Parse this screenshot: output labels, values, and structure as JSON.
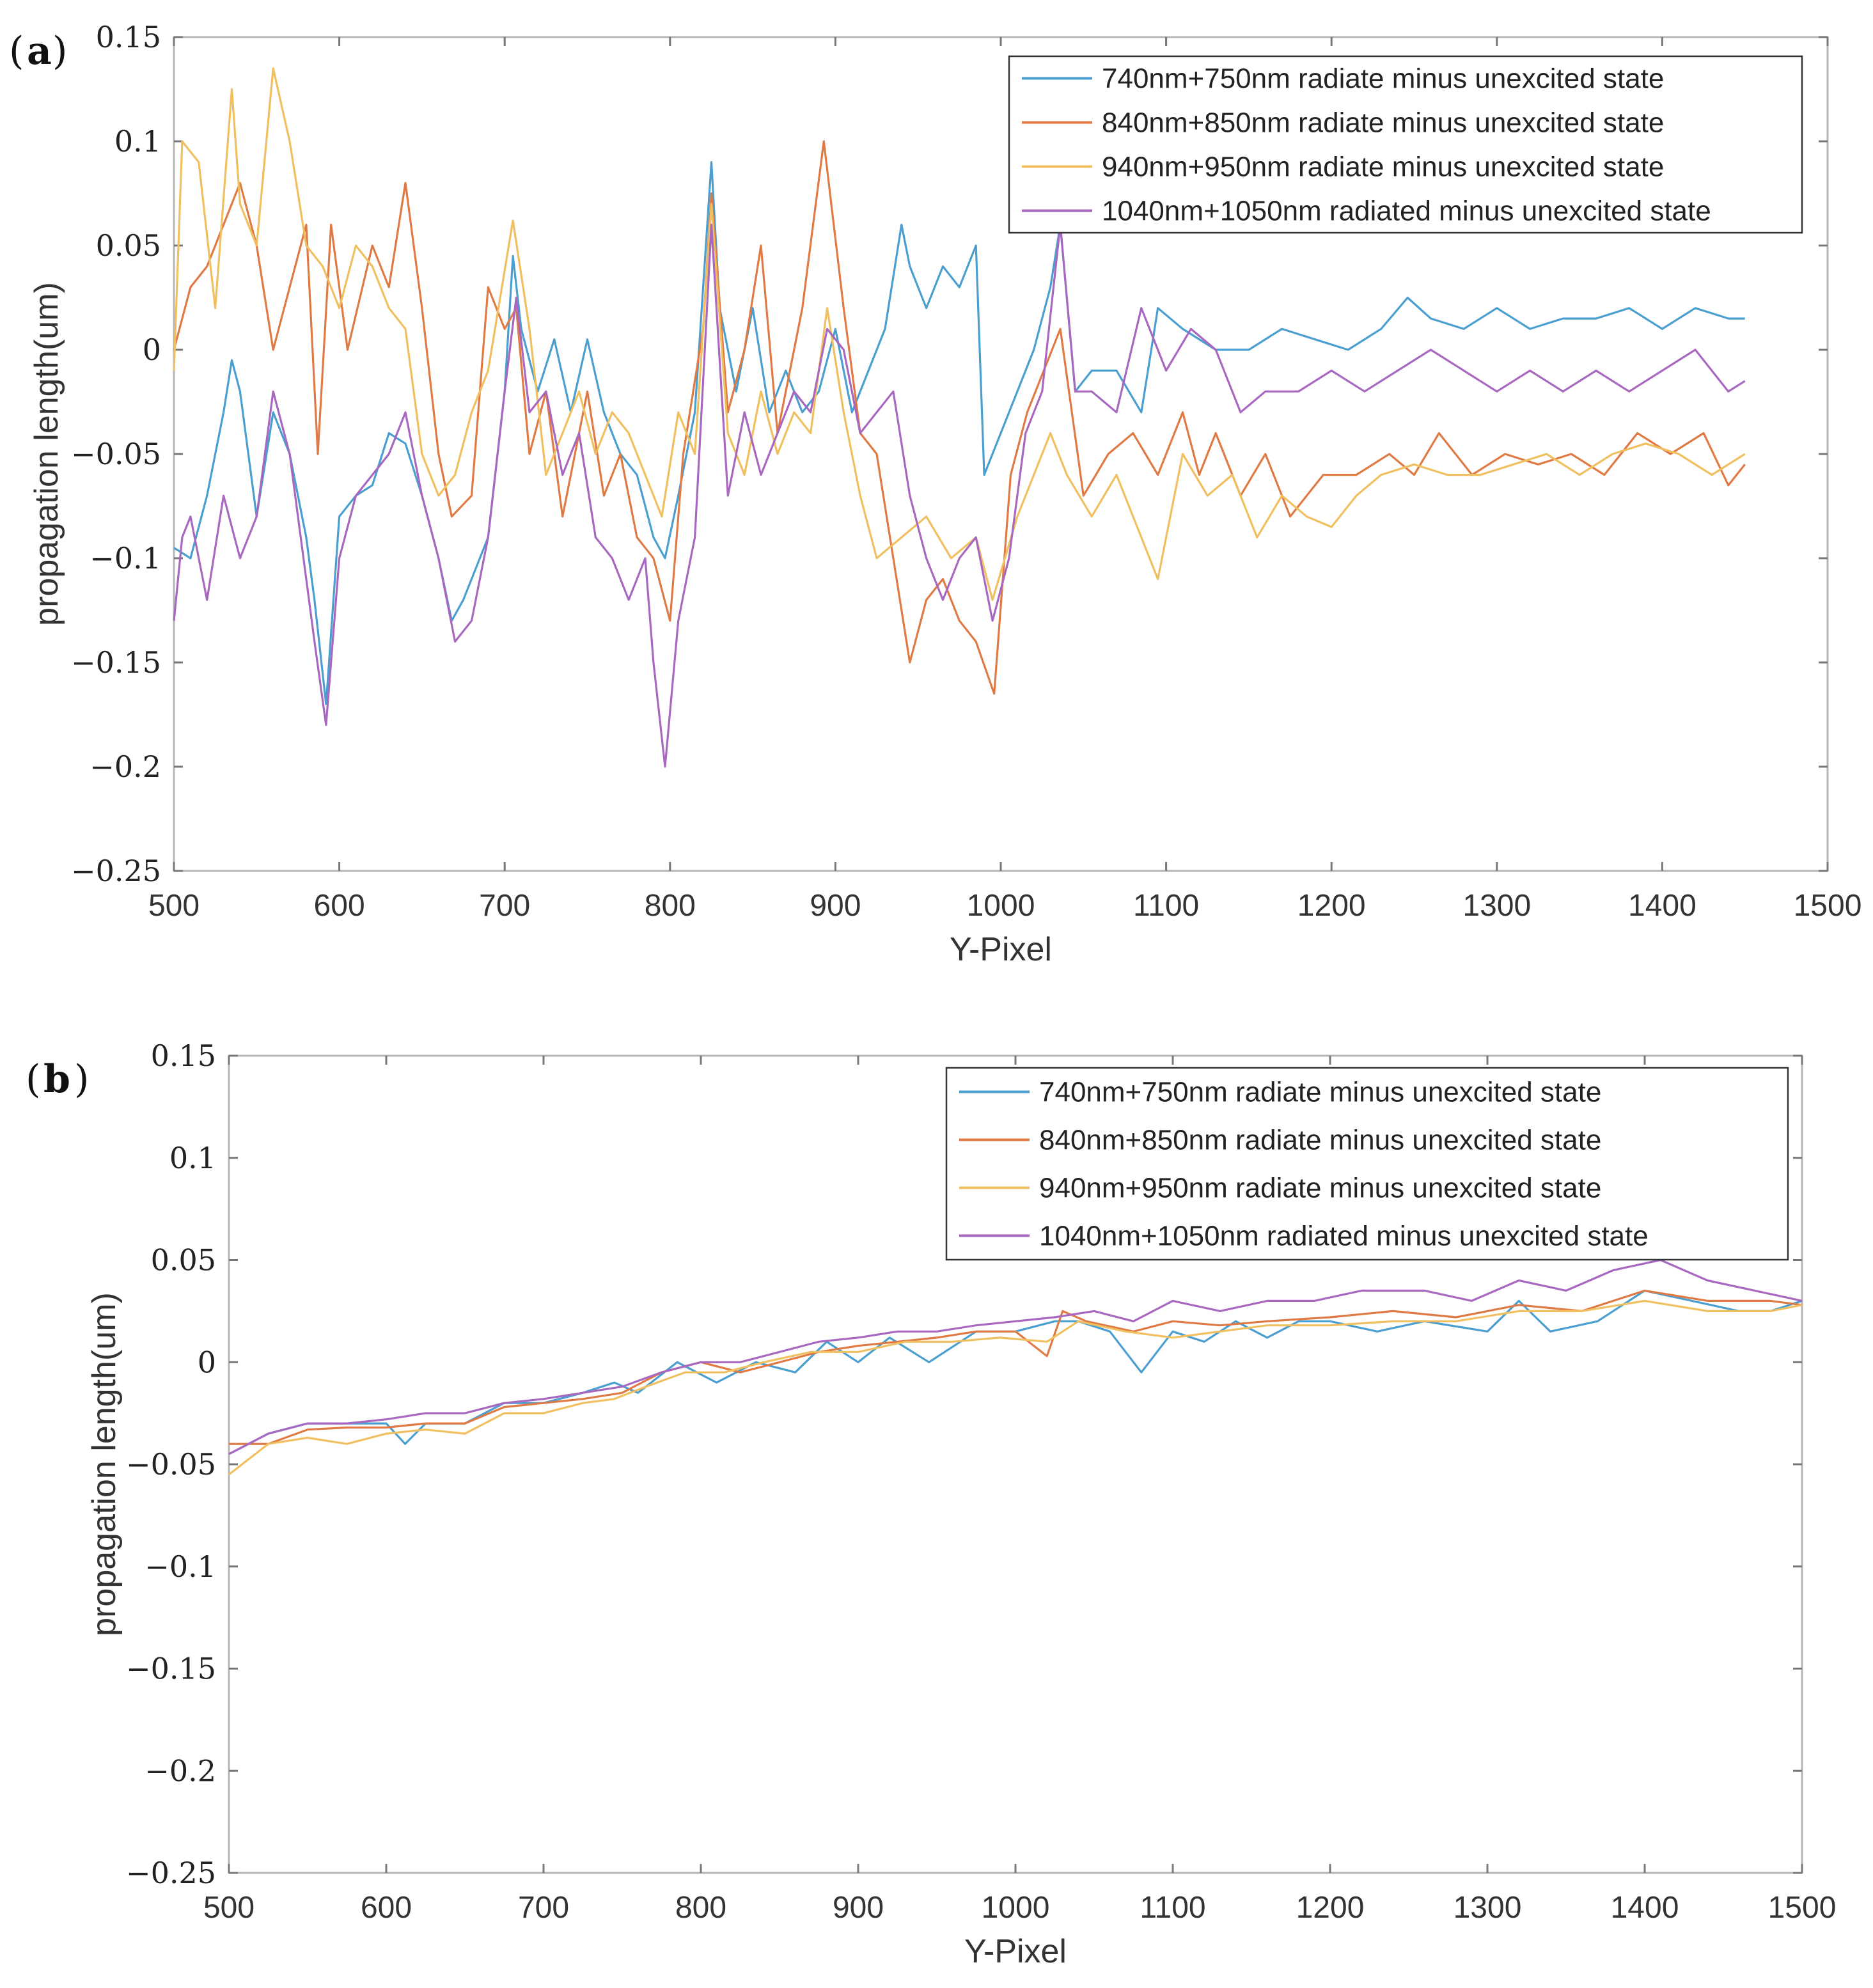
{
  "chart_data": [
    {
      "panel": "(a)",
      "type": "line",
      "xlabel": "Y-Pixel",
      "ylabel": "propagation length(um)",
      "xlim": [
        500,
        1500
      ],
      "ylim": [
        -0.25,
        0.15
      ],
      "xticks": [
        "500",
        "600",
        "700",
        "800",
        "900",
        "1000",
        "1100",
        "1200",
        "1300",
        "1400",
        "1500"
      ],
      "yticks": [
        "0.15",
        "0.1",
        "0.05",
        "0",
        "−0.05",
        "−0.1",
        "−0.15",
        "−0.2",
        "−0.25"
      ],
      "legend_position": "top-right",
      "series": [
        {
          "name": "740nm+750nm radiate minus unexcited state",
          "color": "#4a9fd0",
          "x": [
            500,
            510,
            520,
            530,
            535,
            540,
            550,
            560,
            570,
            580,
            585,
            592,
            600,
            610,
            620,
            630,
            640,
            650,
            660,
            668,
            675,
            690,
            700,
            705,
            710,
            720,
            730,
            740,
            750,
            760,
            770,
            780,
            790,
            797,
            805,
            815,
            825,
            830,
            840,
            850,
            860,
            870,
            880,
            890,
            900,
            910,
            920,
            930,
            940,
            945,
            955,
            965,
            975,
            985,
            990,
            1000,
            1010,
            1020,
            1030,
            1036,
            1045,
            1055,
            1070,
            1085,
            1095,
            1110,
            1130,
            1150,
            1170,
            1190,
            1210,
            1230,
            1246,
            1260,
            1280,
            1300,
            1320,
            1340,
            1360,
            1380,
            1400,
            1420,
            1440,
            1450
          ],
          "y": [
            -0.095,
            -0.1,
            -0.07,
            -0.03,
            -0.005,
            -0.02,
            -0.08,
            -0.03,
            -0.05,
            -0.09,
            -0.12,
            -0.17,
            -0.08,
            -0.07,
            -0.065,
            -0.04,
            -0.045,
            -0.07,
            -0.1,
            -0.13,
            -0.12,
            -0.09,
            -0.02,
            0.045,
            0.01,
            -0.02,
            0.005,
            -0.03,
            0.005,
            -0.03,
            -0.05,
            -0.06,
            -0.09,
            -0.1,
            -0.07,
            -0.03,
            0.09,
            0.02,
            -0.02,
            0.02,
            -0.03,
            -0.01,
            -0.03,
            -0.02,
            0.01,
            -0.03,
            -0.01,
            0.01,
            0.06,
            0.04,
            0.02,
            0.04,
            0.03,
            0.05,
            -0.06,
            -0.04,
            -0.02,
            0.0,
            0.03,
            0.06,
            -0.02,
            -0.01,
            -0.01,
            -0.03,
            0.02,
            0.01,
            0.0,
            0.0,
            0.01,
            0.005,
            0.0,
            0.01,
            0.025,
            0.015,
            0.01,
            0.02,
            0.01,
            0.015,
            0.015,
            0.02,
            0.01,
            0.02,
            0.015,
            0.015
          ]
        },
        {
          "name": "840nm+850nm radiate minus unexcited state",
          "color": "#e07a45",
          "x": [
            500,
            510,
            520,
            530,
            540,
            550,
            560,
            570,
            580,
            587,
            595,
            605,
            620,
            630,
            640,
            650,
            660,
            668,
            680,
            690,
            700,
            707,
            715,
            725,
            735,
            750,
            760,
            770,
            780,
            790,
            800,
            808,
            820,
            825,
            835,
            845,
            855,
            865,
            880,
            893,
            905,
            915,
            925,
            935,
            945,
            955,
            965,
            975,
            985,
            996,
            1006,
            1016,
            1036,
            1050,
            1065,
            1080,
            1095,
            1110,
            1120,
            1130,
            1145,
            1160,
            1175,
            1195,
            1215,
            1235,
            1250,
            1265,
            1285,
            1305,
            1325,
            1345,
            1365,
            1385,
            1405,
            1425,
            1440,
            1450
          ],
          "y": [
            0.0,
            0.03,
            0.04,
            0.06,
            0.08,
            0.05,
            0.0,
            0.03,
            0.06,
            -0.05,
            0.06,
            0.0,
            0.05,
            0.03,
            0.08,
            0.02,
            -0.05,
            -0.08,
            -0.07,
            0.03,
            0.01,
            0.02,
            -0.05,
            -0.02,
            -0.08,
            -0.02,
            -0.07,
            -0.05,
            -0.09,
            -0.1,
            -0.13,
            -0.05,
            0.01,
            0.075,
            -0.03,
            0.0,
            0.05,
            -0.04,
            0.02,
            0.1,
            0.02,
            -0.04,
            -0.05,
            -0.1,
            -0.15,
            -0.12,
            -0.11,
            -0.13,
            -0.14,
            -0.165,
            -0.06,
            -0.03,
            0.01,
            -0.07,
            -0.05,
            -0.04,
            -0.06,
            -0.03,
            -0.06,
            -0.04,
            -0.07,
            -0.05,
            -0.08,
            -0.06,
            -0.06,
            -0.05,
            -0.06,
            -0.04,
            -0.06,
            -0.05,
            -0.055,
            -0.05,
            -0.06,
            -0.04,
            -0.05,
            -0.04,
            -0.065,
            -0.055
          ]
        },
        {
          "name": "940nm+950nm radiate minus unexcited state",
          "color": "#f0c060",
          "x": [
            500,
            505,
            515,
            525,
            535,
            540,
            550,
            560,
            570,
            580,
            590,
            600,
            610,
            620,
            630,
            640,
            650,
            660,
            670,
            680,
            690,
            705,
            715,
            725,
            735,
            745,
            755,
            765,
            775,
            785,
            795,
            805,
            815,
            825,
            835,
            845,
            855,
            865,
            875,
            885,
            895,
            905,
            915,
            925,
            940,
            955,
            970,
            985,
            995,
            1010,
            1030,
            1040,
            1055,
            1070,
            1085,
            1095,
            1110,
            1125,
            1140,
            1155,
            1170,
            1185,
            1200,
            1215,
            1230,
            1250,
            1270,
            1290,
            1310,
            1330,
            1350,
            1370,
            1390,
            1410,
            1430,
            1450
          ],
          "y": [
            -0.01,
            0.1,
            0.09,
            0.02,
            0.125,
            0.07,
            0.05,
            0.135,
            0.1,
            0.05,
            0.04,
            0.02,
            0.05,
            0.04,
            0.02,
            0.01,
            -0.05,
            -0.07,
            -0.06,
            -0.03,
            -0.01,
            0.062,
            0.01,
            -0.06,
            -0.04,
            -0.02,
            -0.05,
            -0.03,
            -0.04,
            -0.06,
            -0.08,
            -0.03,
            -0.05,
            0.07,
            -0.04,
            -0.06,
            -0.02,
            -0.05,
            -0.03,
            -0.04,
            0.02,
            -0.03,
            -0.07,
            -0.1,
            -0.09,
            -0.08,
            -0.1,
            -0.09,
            -0.12,
            -0.08,
            -0.04,
            -0.06,
            -0.08,
            -0.06,
            -0.09,
            -0.11,
            -0.05,
            -0.07,
            -0.06,
            -0.09,
            -0.07,
            -0.08,
            -0.085,
            -0.07,
            -0.06,
            -0.055,
            -0.06,
            -0.06,
            -0.055,
            -0.05,
            -0.06,
            -0.05,
            -0.045,
            -0.05,
            -0.06,
            -0.05
          ]
        },
        {
          "name": "1040nm+1050nm radiated minus unexcited state",
          "color": "#a868c0",
          "x": [
            500,
            505,
            510,
            520,
            530,
            540,
            550,
            560,
            570,
            580,
            585,
            592,
            600,
            610,
            620,
            630,
            640,
            650,
            660,
            670,
            680,
            690,
            700,
            707,
            715,
            725,
            735,
            745,
            755,
            765,
            775,
            785,
            790,
            797,
            805,
            815,
            825,
            835,
            845,
            855,
            865,
            875,
            885,
            895,
            905,
            915,
            925,
            935,
            945,
            955,
            965,
            975,
            985,
            995,
            1005,
            1015,
            1025,
            1036,
            1045,
            1055,
            1070,
            1085,
            1100,
            1115,
            1130,
            1145,
            1160,
            1180,
            1200,
            1220,
            1240,
            1260,
            1280,
            1300,
            1320,
            1340,
            1360,
            1380,
            1400,
            1420,
            1440,
            1450
          ],
          "y": [
            -0.13,
            -0.09,
            -0.08,
            -0.12,
            -0.07,
            -0.1,
            -0.08,
            -0.02,
            -0.05,
            -0.11,
            -0.14,
            -0.18,
            -0.1,
            -0.07,
            -0.06,
            -0.05,
            -0.03,
            -0.07,
            -0.1,
            -0.14,
            -0.13,
            -0.09,
            -0.02,
            0.025,
            -0.03,
            -0.02,
            -0.06,
            -0.04,
            -0.09,
            -0.1,
            -0.12,
            -0.1,
            -0.15,
            -0.2,
            -0.13,
            -0.09,
            0.06,
            -0.07,
            -0.03,
            -0.06,
            -0.04,
            -0.02,
            -0.03,
            0.01,
            0.0,
            -0.04,
            -0.03,
            -0.02,
            -0.07,
            -0.1,
            -0.12,
            -0.1,
            -0.09,
            -0.13,
            -0.1,
            -0.04,
            -0.02,
            0.06,
            -0.02,
            -0.02,
            -0.03,
            0.02,
            -0.01,
            0.01,
            0.0,
            -0.03,
            -0.02,
            -0.02,
            -0.01,
            -0.02,
            -0.01,
            0.0,
            -0.01,
            -0.02,
            -0.01,
            -0.02,
            -0.01,
            -0.02,
            -0.01,
            0.0,
            -0.02,
            -0.015
          ]
        }
      ]
    },
    {
      "panel": "(b)",
      "type": "line",
      "xlabel": "Y-Pixel",
      "ylabel": "propagation length(um)",
      "xlim": [
        500,
        1500
      ],
      "ylim": [
        -0.25,
        0.15
      ],
      "xticks": [
        "500",
        "600",
        "700",
        "800",
        "900",
        "1000",
        "1100",
        "1200",
        "1300",
        "1400",
        "1500"
      ],
      "yticks": [
        "0.15",
        "0.1",
        "0.05",
        "0",
        "−0.05",
        "−0.1",
        "−0.15",
        "−0.2",
        "−0.25"
      ],
      "legend_position": "top-right",
      "series": [
        {
          "name": "740nm+750nm radiate minus unexcited state",
          "color": "#4a9fd0",
          "x": [
            500,
            525,
            550,
            575,
            600,
            612,
            625,
            650,
            675,
            700,
            725,
            745,
            760,
            785,
            810,
            835,
            860,
            880,
            900,
            920,
            945,
            975,
            1000,
            1025,
            1040,
            1060,
            1080,
            1100,
            1120,
            1140,
            1160,
            1180,
            1200,
            1230,
            1260,
            1300,
            1320,
            1340,
            1370,
            1400,
            1430,
            1460,
            1480,
            1500
          ],
          "y": [
            -0.045,
            -0.035,
            -0.03,
            -0.03,
            -0.03,
            -0.04,
            -0.03,
            -0.03,
            -0.02,
            -0.02,
            -0.015,
            -0.01,
            -0.015,
            0.0,
            -0.01,
            0.0,
            -0.005,
            0.01,
            0.0,
            0.012,
            0.0,
            0.015,
            0.015,
            0.02,
            0.02,
            0.015,
            -0.005,
            0.015,
            0.01,
            0.02,
            0.012,
            0.02,
            0.02,
            0.015,
            0.02,
            0.015,
            0.03,
            0.015,
            0.02,
            0.035,
            0.03,
            0.025,
            0.025,
            0.03
          ]
        },
        {
          "name": "840nm+850nm radiate minus unexcited state",
          "color": "#e07a45",
          "x": [
            500,
            525,
            550,
            575,
            600,
            625,
            650,
            675,
            700,
            725,
            750,
            775,
            800,
            825,
            850,
            875,
            900,
            925,
            950,
            975,
            1000,
            1020,
            1030,
            1045,
            1075,
            1100,
            1130,
            1160,
            1200,
            1240,
            1280,
            1320,
            1360,
            1400,
            1440,
            1480,
            1500
          ],
          "y": [
            -0.04,
            -0.04,
            -0.033,
            -0.032,
            -0.032,
            -0.03,
            -0.03,
            -0.022,
            -0.02,
            -0.018,
            -0.015,
            -0.005,
            0.0,
            -0.005,
            0.0,
            0.005,
            0.008,
            0.01,
            0.012,
            0.015,
            0.015,
            0.003,
            0.025,
            0.02,
            0.015,
            0.02,
            0.018,
            0.02,
            0.022,
            0.025,
            0.022,
            0.028,
            0.025,
            0.035,
            0.03,
            0.03,
            0.028
          ]
        },
        {
          "name": "940nm+950nm radiate minus unexcited state",
          "color": "#f0c060",
          "x": [
            500,
            525,
            550,
            575,
            600,
            625,
            650,
            675,
            700,
            725,
            745,
            765,
            790,
            815,
            840,
            870,
            900,
            930,
            960,
            990,
            1020,
            1040,
            1070,
            1100,
            1130,
            1160,
            1200,
            1240,
            1280,
            1320,
            1360,
            1400,
            1440,
            1480,
            1500
          ],
          "y": [
            -0.055,
            -0.04,
            -0.037,
            -0.04,
            -0.035,
            -0.033,
            -0.035,
            -0.025,
            -0.025,
            -0.02,
            -0.018,
            -0.012,
            -0.005,
            -0.005,
            0.0,
            0.005,
            0.005,
            0.01,
            0.01,
            0.012,
            0.01,
            0.02,
            0.015,
            0.012,
            0.015,
            0.018,
            0.018,
            0.02,
            0.02,
            0.025,
            0.025,
            0.03,
            0.025,
            0.025,
            0.028
          ]
        },
        {
          "name": "1040nm+1050nm radiated minus unexcited state",
          "color": "#a868c0",
          "x": [
            500,
            525,
            550,
            575,
            600,
            625,
            650,
            675,
            700,
            725,
            750,
            775,
            800,
            825,
            850,
            875,
            900,
            925,
            950,
            975,
            1000,
            1025,
            1050,
            1075,
            1100,
            1130,
            1160,
            1190,
            1220,
            1260,
            1290,
            1320,
            1350,
            1380,
            1410,
            1440,
            1470,
            1500
          ],
          "y": [
            -0.045,
            -0.035,
            -0.03,
            -0.03,
            -0.028,
            -0.025,
            -0.025,
            -0.02,
            -0.018,
            -0.015,
            -0.012,
            -0.005,
            0.0,
            0.0,
            0.005,
            0.01,
            0.012,
            0.015,
            0.015,
            0.018,
            0.02,
            0.022,
            0.025,
            0.02,
            0.03,
            0.025,
            0.03,
            0.03,
            0.035,
            0.035,
            0.03,
            0.04,
            0.035,
            0.045,
            0.05,
            0.04,
            0.035,
            0.03
          ]
        }
      ]
    }
  ]
}
